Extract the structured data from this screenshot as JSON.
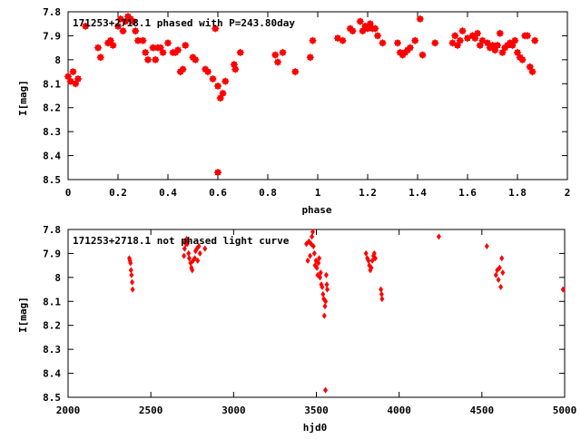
{
  "chart_data": [
    {
      "type": "scatter",
      "title": "171253+2718.1 phased with P=243.80day",
      "xlabel": "phase",
      "ylabel": "I[mag]",
      "xlim": [
        0,
        2
      ],
      "ylim": [
        7.8,
        8.5
      ],
      "y_inverted": true,
      "grid": false,
      "x_ticks": [
        "0",
        "0.2",
        "0.4",
        "0.6",
        "0.8",
        "1",
        "1.2",
        "1.4",
        "1.6",
        "1.8",
        "2"
      ],
      "y_ticks": [
        "7.8",
        "7.9",
        "8",
        "8.1",
        "8.2",
        "8.3",
        "8.4",
        "8.5"
      ],
      "marker_color": "#ff0000",
      "series": [
        {
          "points": [
            [
              0.0,
              8.07
            ],
            [
              0.01,
              8.09
            ],
            [
              0.02,
              8.05
            ],
            [
              0.03,
              8.1
            ],
            [
              0.04,
              8.08
            ],
            [
              0.07,
              7.86
            ],
            [
              0.12,
              7.95
            ],
            [
              0.13,
              7.99
            ],
            [
              0.16,
              7.93
            ],
            [
              0.17,
              7.92
            ],
            [
              0.18,
              7.94
            ],
            [
              0.2,
              7.86
            ],
            [
              0.21,
              7.83
            ],
            [
              0.22,
              7.88
            ],
            [
              0.23,
              7.84
            ],
            [
              0.24,
              7.82
            ],
            [
              0.25,
              7.83
            ],
            [
              0.26,
              7.84
            ],
            [
              0.27,
              7.88
            ],
            [
              0.28,
              7.92
            ],
            [
              0.3,
              7.92
            ],
            [
              0.31,
              7.97
            ],
            [
              0.32,
              8.0
            ],
            [
              0.34,
              7.95
            ],
            [
              0.35,
              8.0
            ],
            [
              0.36,
              7.95
            ],
            [
              0.37,
              7.95
            ],
            [
              0.38,
              7.97
            ],
            [
              0.4,
              7.93
            ],
            [
              0.42,
              7.97
            ],
            [
              0.43,
              7.97
            ],
            [
              0.44,
              7.96
            ],
            [
              0.45,
              8.05
            ],
            [
              0.46,
              8.04
            ],
            [
              0.47,
              7.94
            ],
            [
              0.5,
              7.99
            ],
            [
              0.51,
              8.0
            ],
            [
              0.55,
              8.04
            ],
            [
              0.56,
              8.05
            ],
            [
              0.58,
              8.08
            ],
            [
              0.59,
              7.87
            ],
            [
              0.6,
              8.11
            ],
            [
              0.61,
              8.16
            ],
            [
              0.62,
              8.14
            ],
            [
              0.63,
              8.09
            ],
            [
              0.665,
              8.02
            ],
            [
              0.67,
              8.04
            ],
            [
              0.69,
              7.97
            ],
            [
              0.83,
              7.98
            ],
            [
              0.84,
              8.01
            ],
            [
              0.86,
              7.97
            ],
            [
              0.91,
              8.05
            ],
            [
              0.97,
              7.99
            ],
            [
              0.98,
              7.92
            ],
            [
              1.08,
              7.91
            ],
            [
              1.1,
              7.92
            ],
            [
              1.13,
              7.87
            ],
            [
              1.14,
              7.88
            ],
            [
              1.17,
              7.84
            ],
            [
              1.18,
              7.88
            ],
            [
              1.19,
              7.86
            ],
            [
              1.2,
              7.87
            ],
            [
              1.21,
              7.85
            ],
            [
              1.22,
              7.87
            ],
            [
              1.23,
              7.87
            ],
            [
              1.24,
              7.9
            ],
            [
              1.26,
              7.93
            ],
            [
              1.32,
              7.93
            ],
            [
              1.33,
              7.97
            ],
            [
              1.34,
              7.98
            ],
            [
              1.35,
              7.97
            ],
            [
              1.36,
              7.96
            ],
            [
              1.37,
              7.95
            ],
            [
              1.39,
              7.92
            ],
            [
              1.41,
              7.83
            ],
            [
              1.42,
              7.98
            ],
            [
              1.47,
              7.93
            ],
            [
              1.54,
              7.93
            ],
            [
              1.55,
              7.9
            ],
            [
              1.56,
              7.94
            ],
            [
              1.57,
              7.92
            ],
            [
              1.58,
              7.88
            ],
            [
              1.6,
              7.91
            ],
            [
              1.62,
              7.9
            ],
            [
              1.63,
              7.91
            ],
            [
              1.64,
              7.89
            ],
            [
              1.65,
              7.94
            ],
            [
              1.66,
              7.92
            ],
            [
              1.68,
              7.93
            ],
            [
              1.69,
              7.95
            ],
            [
              1.7,
              7.94
            ],
            [
              1.71,
              7.96
            ],
            [
              1.72,
              7.94
            ],
            [
              1.73,
              7.89
            ],
            [
              1.74,
              7.97
            ],
            [
              1.75,
              7.95
            ],
            [
              1.76,
              7.94
            ],
            [
              1.77,
              7.93
            ],
            [
              1.78,
              7.94
            ],
            [
              1.79,
              7.92
            ],
            [
              1.8,
              7.97
            ],
            [
              1.81,
              7.99
            ],
            [
              1.82,
              8.0
            ],
            [
              1.83,
              7.9
            ],
            [
              1.84,
              7.9
            ],
            [
              1.85,
              8.03
            ],
            [
              1.86,
              8.05
            ],
            [
              1.87,
              7.92
            ]
          ],
          "outliers": [
            [
              0.6,
              8.47
            ]
          ]
        }
      ]
    },
    {
      "type": "scatter",
      "title": "171253+2718.1 not phased light curve",
      "xlabel": "hjd0",
      "ylabel": "I[mag]",
      "xlim": [
        2000,
        5000
      ],
      "ylim": [
        7.8,
        8.5
      ],
      "y_inverted": true,
      "grid": false,
      "x_ticks": [
        "2000",
        "2500",
        "3000",
        "3500",
        "4000",
        "4500",
        "5000"
      ],
      "y_ticks": [
        "7.8",
        "7.9",
        "8",
        "8.1",
        "8.2",
        "8.3",
        "8.4",
        "8.5"
      ],
      "marker_color": "#ff0000",
      "series": [
        {
          "points": [
            [
              2370,
              7.92
            ],
            [
              2374,
              7.93
            ],
            [
              2377,
              7.94
            ],
            [
              2380,
              7.97
            ],
            [
              2383,
              7.99
            ],
            [
              2387,
              8.02
            ],
            [
              2390,
              8.05
            ],
            [
              2700,
              7.91
            ],
            [
              2704,
              7.88
            ],
            [
              2708,
              7.85
            ],
            [
              2712,
              7.86
            ],
            [
              2716,
              7.84
            ],
            [
              2720,
              7.86
            ],
            [
              2724,
              7.85
            ],
            [
              2728,
              7.9
            ],
            [
              2732,
              7.92
            ],
            [
              2740,
              7.94
            ],
            [
              2745,
              7.96
            ],
            [
              2750,
              7.97
            ],
            [
              2755,
              7.93
            ],
            [
              2765,
              7.92
            ],
            [
              2770,
              7.89
            ],
            [
              2778,
              7.88
            ],
            [
              2783,
              7.93
            ],
            [
              2790,
              7.87
            ],
            [
              2797,
              7.9
            ],
            [
              2827,
              7.88
            ],
            [
              3440,
              7.86
            ],
            [
              3448,
              7.93
            ],
            [
              3455,
              7.85
            ],
            [
              3462,
              7.91
            ],
            [
              3468,
              7.86
            ],
            [
              3473,
              7.83
            ],
            [
              3478,
              7.81
            ],
            [
              3482,
              7.87
            ],
            [
              3488,
              7.9
            ],
            [
              3492,
              7.95
            ],
            [
              3498,
              7.93
            ],
            [
              3503,
              7.96
            ],
            [
              3508,
              7.99
            ],
            [
              3512,
              7.94
            ],
            [
              3517,
              7.92
            ],
            [
              3522,
              8.0
            ],
            [
              3526,
              7.98
            ],
            [
              3530,
              8.03
            ],
            [
              3535,
              8.04
            ],
            [
              3540,
              8.07
            ],
            [
              3545,
              8.09
            ],
            [
              3548,
              8.16
            ],
            [
              3552,
              8.12
            ],
            [
              3556,
              8.1
            ],
            [
              3560,
              7.99
            ],
            [
              3563,
              8.03
            ],
            [
              3566,
              8.05
            ],
            [
              3800,
              7.9
            ],
            [
              3808,
              7.92
            ],
            [
              3815,
              7.93
            ],
            [
              3820,
              7.95
            ],
            [
              3826,
              7.97
            ],
            [
              3832,
              7.96
            ],
            [
              3838,
              7.93
            ],
            [
              3845,
              7.91
            ],
            [
              3850,
              7.9
            ],
            [
              3856,
              7.92
            ],
            [
              3890,
              8.05
            ],
            [
              3894,
              8.07
            ],
            [
              3897,
              8.09
            ],
            [
              4240,
              7.83
            ],
            [
              4530,
              7.87
            ],
            [
              4585,
              7.99
            ],
            [
              4593,
              7.97
            ],
            [
              4600,
              8.01
            ],
            [
              4607,
              7.96
            ],
            [
              4614,
              8.04
            ],
            [
              4620,
              7.92
            ],
            [
              4626,
              7.98
            ],
            [
              4990,
              8.05
            ]
          ],
          "outliers": [
            [
              3555,
              8.47
            ]
          ]
        }
      ]
    }
  ]
}
